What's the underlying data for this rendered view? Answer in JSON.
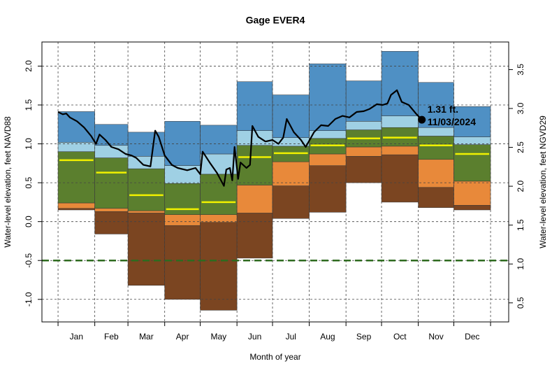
{
  "chart_data": {
    "type": "step-band",
    "title": "Gage EVER4",
    "x_label": "Month of year",
    "y_label": "Water-level elevation, feet NAVD88",
    "y2_label": "Water-level elevation, feet NGVD29",
    "categories": [
      "Jan",
      "Feb",
      "Mar",
      "Apr",
      "May",
      "Jun",
      "Jul",
      "Aug",
      "Sep",
      "Oct",
      "Nov",
      "Dec"
    ],
    "xlim": [
      -13.6,
      380.3
    ],
    "xticks": [
      0,
      31,
      59,
      90,
      120,
      151,
      181,
      212,
      243,
      273,
      304,
      334,
      365
    ],
    "ylim": [
      -1.29,
      2.31
    ],
    "yticks": [
      {
        "value": -1.0,
        "label": "-1.0"
      },
      -0.5,
      {
        "value": 0.0,
        "label": "0.0"
      },
      0.5,
      {
        "value": 1.0,
        "label": "1.0"
      },
      1.5,
      {
        "value": 2.0,
        "label": "2.0"
      }
    ],
    "y2lim": [
      0.255,
      3.855
    ],
    "y2ticks": [
      0.5,
      {
        "value": 1.0,
        "label": "1.0"
      },
      1.5,
      {
        "value": 2.0,
        "label": "2.0"
      },
      2.5,
      {
        "value": 3.0,
        "label": "3.0"
      },
      3.5
    ],
    "grid": true,
    "series": [
      {
        "values": [
          0.15,
          -0.16,
          -0.82,
          -1.0,
          -1.14,
          -0.47,
          0.04,
          0.12,
          0.5,
          0.25,
          0.18,
          0.15
        ]
      },
      {
        "color": "#7b4521",
        "values": [
          0.17,
          0.13,
          0.11,
          -0.05,
          -0.01,
          0.11,
          0.46,
          0.72,
          0.84,
          0.86,
          0.44,
          0.21
        ]
      },
      {
        "color": "#e8893a",
        "values": [
          0.24,
          0.17,
          0.14,
          0.09,
          0.09,
          0.47,
          0.77,
          0.87,
          0.96,
          0.97,
          0.8,
          0.52
        ]
      },
      {
        "color": "#5b7f2e",
        "values": [
          0.9,
          0.82,
          0.68,
          0.49,
          0.61,
          0.98,
          0.97,
          1.07,
          1.18,
          1.21,
          1.1,
          0.99
        ]
      },
      {
        "color": "#9fd0e4",
        "values": [
          1.02,
          0.98,
          0.84,
          0.72,
          0.87,
          1.17,
          1.08,
          1.17,
          1.29,
          1.36,
          1.21,
          1.09
        ]
      },
      {
        "color": "#4f90c4",
        "values": [
          1.415,
          1.25,
          1.15,
          1.29,
          1.24,
          1.8,
          1.63,
          2.03,
          1.81,
          2.19,
          1.79,
          1.48
        ]
      }
    ],
    "median": {
      "color": "#f0f000",
      "values": [
        0.79,
        0.63,
        0.34,
        0.16,
        0.25,
        0.83,
        0.88,
        0.98,
        1.07,
        1.08,
        0.98,
        0.87
      ]
    },
    "reference_line": {
      "value": -0.5,
      "color": "#2e6b1f"
    },
    "daily": {
      "color": "#000000",
      "x": [
        0,
        4,
        7,
        10,
        16,
        22,
        28,
        32,
        35,
        40,
        45,
        51,
        57,
        62,
        66,
        72,
        78,
        82,
        85,
        90,
        96,
        101,
        109,
        116,
        120,
        122,
        128,
        134,
        140,
        142,
        145,
        147,
        149,
        152,
        154,
        159,
        162,
        164,
        169,
        175,
        181,
        186,
        190,
        193,
        199,
        205,
        209,
        216,
        222,
        228,
        234,
        240,
        246,
        252,
        258,
        263,
        269,
        274,
        278,
        281,
        286,
        290,
        296,
        302,
        307
      ],
      "values": [
        1.41,
        1.38,
        1.39,
        1.34,
        1.29,
        1.21,
        1.1,
        1.0,
        1.12,
        1.05,
        0.96,
        0.93,
        0.87,
        0.85,
        0.82,
        0.73,
        0.71,
        1.17,
        1.09,
        0.85,
        0.73,
        0.69,
        0.66,
        0.69,
        0.61,
        0.9,
        0.76,
        0.63,
        0.46,
        0.67,
        0.69,
        0.53,
        0.96,
        0.55,
        0.76,
        0.69,
        0.73,
        1.23,
        1.09,
        1.03,
        1.05,
        1.0,
        1.08,
        1.32,
        1.15,
        1.05,
        0.96,
        1.15,
        1.24,
        1.23,
        1.32,
        1.36,
        1.34,
        1.41,
        1.42,
        1.45,
        1.51,
        1.5,
        1.52,
        1.63,
        1.69,
        1.54,
        1.5,
        1.39,
        1.31
      ]
    },
    "last_point": {
      "x": 307,
      "value": 1.31,
      "label": "1.31 ft.",
      "date": "11/03/2024"
    }
  }
}
